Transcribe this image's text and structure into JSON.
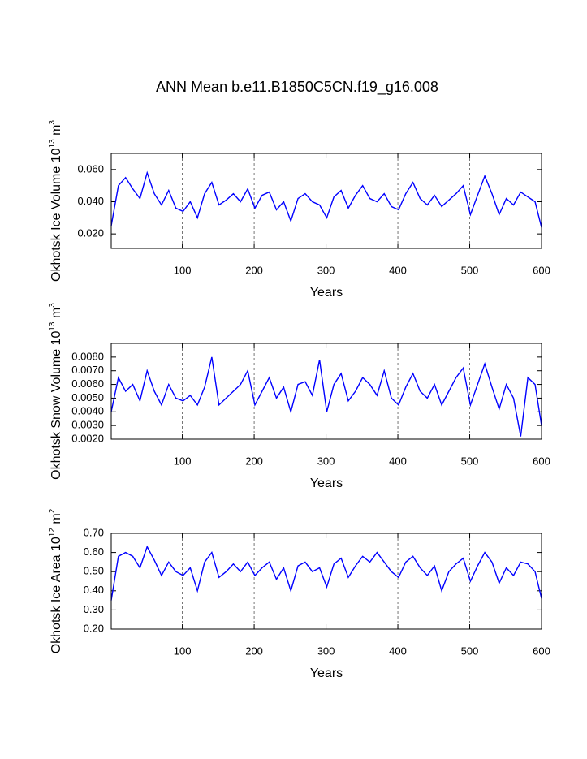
{
  "title": "ANN Mean b.e11.B1850C5CN.f19_g16.008",
  "chart_data": [
    {
      "type": "line",
      "xlabel": "Years",
      "ylabel": {
        "text": "Okhotsk Ice Volume 10",
        "exp": "13",
        "unit": " m",
        "unit_exp": "3"
      },
      "color": "#0000ff",
      "grid": true,
      "xlim": [
        1,
        600
      ],
      "xticks": [
        100,
        200,
        300,
        400,
        500,
        600
      ],
      "ylim": [
        0.011,
        0.07
      ],
      "yticks": [
        {
          "value": 0.02,
          "label": "0.020"
        },
        {
          "value": 0.04,
          "label": "0.040"
        },
        {
          "value": 0.06,
          "label": "0.060"
        }
      ],
      "x": [
        1,
        11,
        21,
        31,
        41,
        51,
        61,
        71,
        81,
        91,
        101,
        111,
        121,
        131,
        141,
        151,
        161,
        171,
        181,
        191,
        201,
        211,
        221,
        231,
        241,
        251,
        261,
        271,
        281,
        291,
        301,
        311,
        321,
        331,
        341,
        351,
        361,
        371,
        381,
        391,
        401,
        411,
        421,
        431,
        441,
        451,
        461,
        471,
        481,
        491,
        501,
        511,
        521,
        531,
        541,
        551,
        561,
        571,
        581,
        591,
        600
      ],
      "values": [
        0.025,
        0.05,
        0.055,
        0.048,
        0.042,
        0.058,
        0.045,
        0.038,
        0.047,
        0.036,
        0.034,
        0.04,
        0.03,
        0.045,
        0.052,
        0.038,
        0.041,
        0.045,
        0.04,
        0.048,
        0.036,
        0.044,
        0.046,
        0.035,
        0.04,
        0.028,
        0.042,
        0.045,
        0.04,
        0.038,
        0.03,
        0.043,
        0.047,
        0.036,
        0.044,
        0.05,
        0.042,
        0.04,
        0.045,
        0.037,
        0.035,
        0.045,
        0.052,
        0.042,
        0.038,
        0.044,
        0.037,
        0.041,
        0.045,
        0.05,
        0.032,
        0.044,
        0.056,
        0.045,
        0.032,
        0.042,
        0.038,
        0.046,
        0.043,
        0.04,
        0.024
      ]
    },
    {
      "type": "line",
      "xlabel": "Years",
      "ylabel": {
        "text": "Okhotsk Snow Volume 10",
        "exp": "13",
        "unit": " m",
        "unit_exp": "3"
      },
      "color": "#0000ff",
      "grid": true,
      "xlim": [
        1,
        600
      ],
      "xticks": [
        100,
        200,
        300,
        400,
        500,
        600
      ],
      "ylim": [
        0.002,
        0.009
      ],
      "yticks": [
        {
          "value": 0.002,
          "label": "0.0020"
        },
        {
          "value": 0.003,
          "label": "0.0030"
        },
        {
          "value": 0.004,
          "label": "0.0040"
        },
        {
          "value": 0.005,
          "label": "0.0050"
        },
        {
          "value": 0.006,
          "label": "0.0060"
        },
        {
          "value": 0.007,
          "label": "0.0070"
        },
        {
          "value": 0.008,
          "label": "0.0080"
        }
      ],
      "x": [
        1,
        11,
        21,
        31,
        41,
        51,
        61,
        71,
        81,
        91,
        101,
        111,
        121,
        131,
        141,
        151,
        161,
        171,
        181,
        191,
        201,
        211,
        221,
        231,
        241,
        251,
        261,
        271,
        281,
        291,
        301,
        311,
        321,
        331,
        341,
        351,
        361,
        371,
        381,
        391,
        401,
        411,
        421,
        431,
        441,
        451,
        461,
        471,
        481,
        491,
        501,
        511,
        521,
        531,
        541,
        551,
        561,
        571,
        581,
        591,
        600
      ],
      "values": [
        0.004,
        0.0065,
        0.0055,
        0.006,
        0.0048,
        0.007,
        0.0055,
        0.0045,
        0.006,
        0.005,
        0.0048,
        0.0052,
        0.0045,
        0.0058,
        0.008,
        0.0045,
        0.005,
        0.0055,
        0.006,
        0.007,
        0.0045,
        0.0055,
        0.0065,
        0.005,
        0.0058,
        0.004,
        0.006,
        0.0062,
        0.0052,
        0.0078,
        0.004,
        0.006,
        0.0068,
        0.0048,
        0.0055,
        0.0065,
        0.006,
        0.0052,
        0.007,
        0.005,
        0.0045,
        0.0058,
        0.0068,
        0.0055,
        0.005,
        0.006,
        0.0045,
        0.0055,
        0.0065,
        0.0072,
        0.0045,
        0.006,
        0.0075,
        0.0058,
        0.0042,
        0.006,
        0.005,
        0.0022,
        0.0065,
        0.006,
        0.003
      ]
    },
    {
      "type": "line",
      "xlabel": "Years",
      "ylabel": {
        "text": "Okhotsk Ice Area 10",
        "exp": "12",
        "unit": " m",
        "unit_exp": "2"
      },
      "color": "#0000ff",
      "grid": true,
      "xlim": [
        1,
        600
      ],
      "xticks": [
        100,
        200,
        300,
        400,
        500,
        600
      ],
      "ylim": [
        0.2,
        0.7
      ],
      "yticks": [
        {
          "value": 0.2,
          "label": "0.20"
        },
        {
          "value": 0.3,
          "label": "0.30"
        },
        {
          "value": 0.4,
          "label": "0.40"
        },
        {
          "value": 0.5,
          "label": "0.50"
        },
        {
          "value": 0.6,
          "label": "0.60"
        },
        {
          "value": 0.7,
          "label": "0.70"
        }
      ],
      "x": [
        1,
        11,
        21,
        31,
        41,
        51,
        61,
        71,
        81,
        91,
        101,
        111,
        121,
        131,
        141,
        151,
        161,
        171,
        181,
        191,
        201,
        211,
        221,
        231,
        241,
        251,
        261,
        271,
        281,
        291,
        301,
        311,
        321,
        331,
        341,
        351,
        361,
        371,
        381,
        391,
        401,
        411,
        421,
        431,
        441,
        451,
        461,
        471,
        481,
        491,
        501,
        511,
        521,
        531,
        541,
        551,
        561,
        571,
        581,
        591,
        600
      ],
      "values": [
        0.35,
        0.58,
        0.6,
        0.58,
        0.52,
        0.63,
        0.56,
        0.48,
        0.55,
        0.5,
        0.48,
        0.52,
        0.4,
        0.55,
        0.6,
        0.47,
        0.5,
        0.54,
        0.5,
        0.55,
        0.48,
        0.52,
        0.55,
        0.46,
        0.52,
        0.4,
        0.53,
        0.55,
        0.5,
        0.52,
        0.42,
        0.54,
        0.57,
        0.47,
        0.53,
        0.58,
        0.55,
        0.6,
        0.55,
        0.5,
        0.47,
        0.55,
        0.58,
        0.52,
        0.48,
        0.53,
        0.4,
        0.5,
        0.54,
        0.57,
        0.45,
        0.53,
        0.6,
        0.55,
        0.44,
        0.52,
        0.48,
        0.55,
        0.54,
        0.5,
        0.36
      ]
    }
  ]
}
